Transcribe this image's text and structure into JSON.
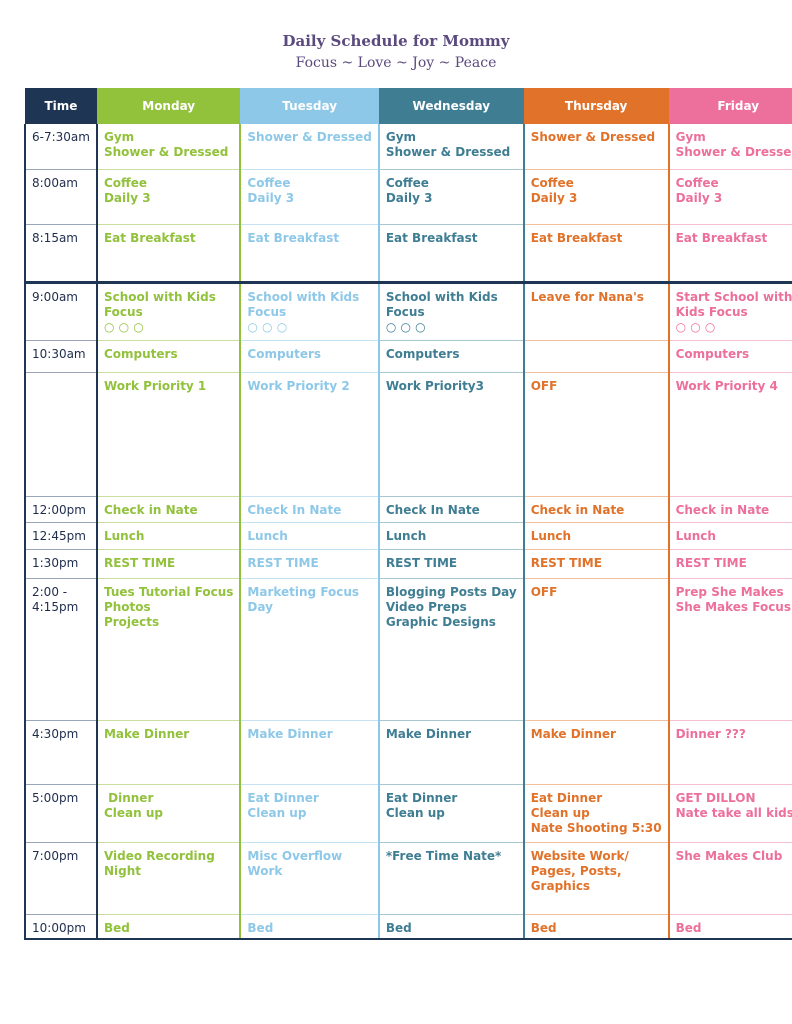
{
  "header": {
    "title": "Daily Schedule for Mommy",
    "subtitle": "Focus ~ Love ~ Joy ~ Peace"
  },
  "columns": [
    "Time",
    "Monday",
    "Tuesday",
    "Wednesday",
    "Thursday",
    "Friday"
  ],
  "colors": {
    "time": "#1f3554",
    "monday": "#92c13c",
    "tuesday": "#8ec8e8",
    "wednesday": "#3f7d93",
    "thursday": "#e0722a",
    "friday": "#ec6f9c",
    "title": "#5b4a7d"
  },
  "rows": [
    {
      "time": [
        "6-7:30am"
      ],
      "monday": [
        "Gym",
        "Shower & Dressed"
      ],
      "tuesday": [
        "",
        "Shower & Dressed"
      ],
      "wednesday": [
        "Gym",
        "Shower & Dressed"
      ],
      "thursday": [
        "",
        "Shower & Dressed"
      ],
      "friday": [
        "Gym",
        "Shower & Dressed"
      ]
    },
    {
      "time": [
        "8:00am"
      ],
      "monday": [
        "Coffee",
        "Daily 3"
      ],
      "tuesday": [
        "Coffee",
        "Daily 3"
      ],
      "wednesday": [
        "Coffee",
        "Daily 3"
      ],
      "thursday": [
        "Coffee",
        "Daily 3"
      ],
      "friday": [
        "Coffee",
        "Daily 3"
      ]
    },
    {
      "time": [
        "8:15am"
      ],
      "monday": [
        "Eat Breakfast"
      ],
      "tuesday": [
        "Eat Breakfast"
      ],
      "wednesday": [
        "Eat Breakfast"
      ],
      "thursday": [
        "Eat Breakfast"
      ],
      "friday": [
        "Eat Breakfast"
      ]
    },
    {
      "time": [
        "9:00am"
      ],
      "monday": [
        "School with Kids",
        "Focus",
        "○ ○ ○"
      ],
      "tuesday": [
        "School with Kids",
        "Focus",
        "○ ○ ○"
      ],
      "wednesday": [
        "School with Kids",
        "Focus",
        "○ ○ ○"
      ],
      "thursday": [
        "Leave for Nana's"
      ],
      "friday": [
        "Start School with",
        "Kids Focus",
        "○ ○ ○"
      ]
    },
    {
      "time": [
        "10:30am"
      ],
      "monday": [
        "Computers"
      ],
      "tuesday": [
        "Computers"
      ],
      "wednesday": [
        "Computers"
      ],
      "thursday": [
        ""
      ],
      "friday": [
        "Computers"
      ]
    },
    {
      "time": [
        ""
      ],
      "monday": [
        "Work Priority 1"
      ],
      "tuesday": [
        "Work Priority 2"
      ],
      "wednesday": [
        "Work Priority3"
      ],
      "thursday": [
        "OFF"
      ],
      "friday": [
        "Work Priority 4"
      ]
    },
    {
      "time": [
        "12:00pm"
      ],
      "monday": [
        "Check in Nate"
      ],
      "tuesday": [
        "Check In Nate"
      ],
      "wednesday": [
        "Check In Nate"
      ],
      "thursday": [
        "Check in Nate"
      ],
      "friday": [
        "Check in Nate"
      ]
    },
    {
      "time": [
        "12:45pm"
      ],
      "monday": [
        "Lunch"
      ],
      "tuesday": [
        "Lunch"
      ],
      "wednesday": [
        "Lunch"
      ],
      "thursday": [
        "Lunch"
      ],
      "friday": [
        "Lunch"
      ]
    },
    {
      "time": [
        "1:30pm"
      ],
      "monday": [
        "REST TIME"
      ],
      "tuesday": [
        "REST TIME"
      ],
      "wednesday": [
        "REST TIME"
      ],
      "thursday": [
        "REST TIME"
      ],
      "friday": [
        "REST TIME"
      ]
    },
    {
      "time": [
        "2:00 -",
        "4:15pm"
      ],
      "monday": [
        "Tues Tutorial Focus",
        "Photos",
        "Projects"
      ],
      "tuesday": [
        "Marketing Focus",
        "Day"
      ],
      "wednesday": [
        "Blogging Posts Day",
        "Video Preps",
        "Graphic Designs"
      ],
      "thursday": [
        "OFF"
      ],
      "friday": [
        "Prep She Makes",
        "She Makes Focus"
      ]
    },
    {
      "time": [
        "4:30pm"
      ],
      "monday": [
        "Make Dinner"
      ],
      "tuesday": [
        "Make Dinner"
      ],
      "wednesday": [
        "Make Dinner"
      ],
      "thursday": [
        "Make Dinner"
      ],
      "friday": [
        "Dinner ???"
      ]
    },
    {
      "time": [
        "5:00pm"
      ],
      "monday": [
        " Dinner",
        "Clean up"
      ],
      "tuesday": [
        "Eat Dinner",
        "Clean up"
      ],
      "wednesday": [
        "Eat Dinner",
        "Clean up"
      ],
      "thursday": [
        "Eat Dinner",
        "Clean up",
        "Nate Shooting 5:30"
      ],
      "friday": [
        "GET DILLON",
        "Nate take all kids?"
      ]
    },
    {
      "time": [
        "7:00pm"
      ],
      "monday": [
        "Video Recording",
        "Night"
      ],
      "tuesday": [
        "Misc Overflow",
        "Work"
      ],
      "wednesday": [
        "*Free Time Nate*"
      ],
      "thursday": [
        "Website Work/",
        "Pages, Posts,",
        "Graphics"
      ],
      "friday": [
        "She Makes Club"
      ]
    },
    {
      "time": [
        "10:00pm"
      ],
      "monday": [
        "Bed"
      ],
      "tuesday": [
        "Bed"
      ],
      "wednesday": [
        "Bed"
      ],
      "thursday": [
        "Bed"
      ],
      "friday": [
        "Bed"
      ]
    }
  ]
}
